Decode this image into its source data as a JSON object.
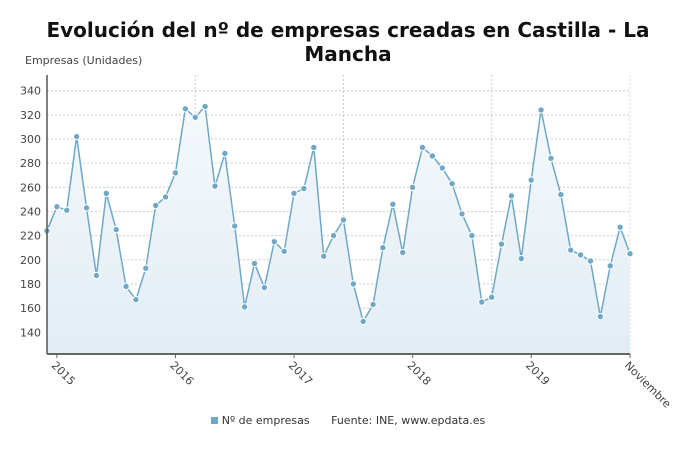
{
  "chart_data": {
    "type": "area",
    "title": "Evolución del nº de empresas creadas en Castilla - La Mancha",
    "ylabel": "Empresas (Unidades)",
    "xlabel": "",
    "ylim": [
      122,
      353
    ],
    "yticks": [
      140,
      160,
      180,
      200,
      220,
      240,
      260,
      280,
      300,
      320,
      340
    ],
    "xtick_labels": [
      {
        "label": "2015",
        "index": 1
      },
      {
        "label": "2016",
        "index": 13
      },
      {
        "label": "2017",
        "index": 25
      },
      {
        "label": "2018",
        "index": 37
      },
      {
        "label": "2019",
        "index": 49
      },
      {
        "label": "Noviembre",
        "index": 59
      }
    ],
    "vertical_gridline_indices": [
      15,
      30,
      45
    ],
    "grid": true,
    "series": [
      {
        "name": "Nº de empresas",
        "color": "#6fa8c7",
        "values": [
          224,
          244,
          241,
          302,
          243,
          187,
          255,
          225,
          178,
          167,
          193,
          245,
          252,
          272,
          325,
          318,
          327,
          261,
          288,
          228,
          161,
          197,
          177,
          215,
          207,
          255,
          259,
          293,
          203,
          220,
          233,
          180,
          149,
          163,
          210,
          246,
          206,
          260,
          293,
          286,
          276,
          263,
          238,
          220,
          165,
          169,
          213,
          253,
          201,
          266,
          324,
          284,
          254,
          208,
          204,
          199,
          153,
          195,
          227,
          205
        ]
      }
    ],
    "legend_position": "bottom",
    "source": "Fuente: INE, www.epdata.es"
  }
}
